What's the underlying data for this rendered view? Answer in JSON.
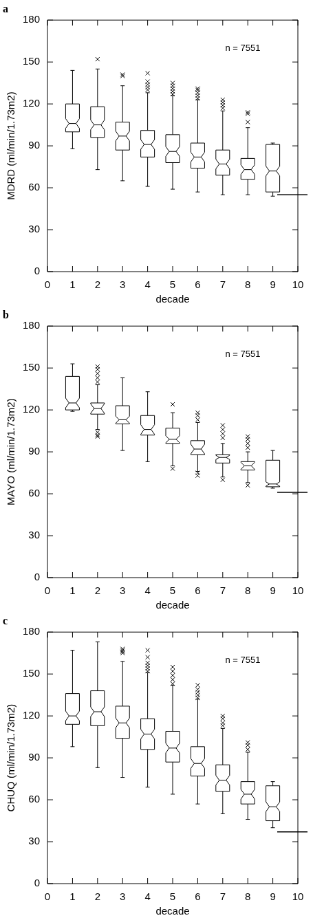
{
  "chart_data": [
    {
      "type": "box",
      "title": "a",
      "xlabel": "decade",
      "ylabel": "MDRD (ml/min/1.73m2)",
      "annotations": [
        "n = 7551"
      ],
      "x": [
        1,
        2,
        3,
        4,
        5,
        6,
        7,
        8,
        9
      ],
      "xlim": [
        0,
        10
      ],
      "xticks": [
        0,
        1,
        2,
        3,
        4,
        5,
        6,
        7,
        8,
        9,
        10
      ],
      "ylim": [
        0,
        180
      ],
      "yticks": [
        0,
        30,
        60,
        90,
        120,
        150,
        180
      ],
      "grid": false,
      "marker": "cross",
      "boxes": [
        {
          "low": 88,
          "q1": 100,
          "median": 106,
          "q3": 120,
          "high": 144
        },
        {
          "low": 73,
          "q1": 96,
          "median": 105,
          "q3": 118,
          "high": 145,
          "outliers": [
            152
          ]
        },
        {
          "low": 65,
          "q1": 87,
          "median": 97,
          "q3": 107,
          "high": 133,
          "outliers": [
            140,
            141
          ]
        },
        {
          "low": 61,
          "q1": 82,
          "median": 91,
          "q3": 101,
          "high": 128,
          "outliers": [
            130,
            132,
            134,
            136,
            142
          ]
        },
        {
          "low": 59,
          "q1": 78,
          "median": 86,
          "q3": 98,
          "high": 126,
          "outliers": [
            127,
            129,
            131,
            133,
            135
          ]
        },
        {
          "low": 57,
          "q1": 74,
          "median": 82,
          "q3": 92,
          "high": 123,
          "outliers": [
            124,
            126,
            128,
            130,
            131
          ]
        },
        {
          "low": 55,
          "q1": 69,
          "median": 77,
          "q3": 87,
          "high": 115,
          "outliers": [
            117,
            119,
            121,
            123
          ]
        },
        {
          "low": 55,
          "q1": 66,
          "median": 73,
          "q3": 81,
          "high": 103,
          "outliers": [
            107,
            113,
            114
          ]
        },
        {
          "low": 54,
          "q1": 57,
          "median": 72,
          "q3": 91,
          "high": 92
        }
      ],
      "ref_lines": [
        {
          "axis": "y",
          "value": 55
        }
      ]
    },
    {
      "type": "box",
      "title": "b",
      "xlabel": "decade",
      "ylabel": "MAYO (ml/min/1.73m2)",
      "annotations": [
        "n = 7551"
      ],
      "x": [
        1,
        2,
        3,
        4,
        5,
        6,
        7,
        8,
        9
      ],
      "xlim": [
        0,
        10
      ],
      "xticks": [
        0,
        1,
        2,
        3,
        4,
        5,
        6,
        7,
        8,
        9,
        10
      ],
      "ylim": [
        0,
        180
      ],
      "yticks": [
        0,
        30,
        60,
        90,
        120,
        150,
        180
      ],
      "grid": false,
      "marker": "cross",
      "boxes": [
        {
          "low": 119,
          "q1": 120,
          "median": 125,
          "q3": 144,
          "high": 153
        },
        {
          "low": 106,
          "q1": 117,
          "median": 121,
          "q3": 125,
          "high": 138,
          "outliers": [
            140,
            143,
            146,
            149,
            151,
            104,
            102,
            101
          ]
        },
        {
          "low": 91,
          "q1": 110,
          "median": 113,
          "q3": 123,
          "high": 143
        },
        {
          "low": 83,
          "q1": 102,
          "median": 106,
          "q3": 116,
          "high": 133
        },
        {
          "low": 80,
          "q1": 96,
          "median": 99,
          "q3": 107,
          "high": 118,
          "outliers": [
            124,
            78
          ]
        },
        {
          "low": 76,
          "q1": 88,
          "median": 92,
          "q3": 98,
          "high": 111,
          "outliers": [
            113,
            116,
            118,
            73,
            75
          ]
        },
        {
          "low": 72,
          "q1": 82,
          "median": 86,
          "q3": 88,
          "high": 96,
          "outliers": [
            100,
            103,
            106,
            109,
            70
          ]
        },
        {
          "low": 68,
          "q1": 77,
          "median": 80,
          "q3": 83,
          "high": 90,
          "outliers": [
            93,
            96,
            99,
            101,
            66
          ]
        },
        {
          "low": 64,
          "q1": 65,
          "median": 67,
          "q3": 84,
          "high": 91
        }
      ],
      "ref_lines": [
        {
          "axis": "y",
          "value": 61
        }
      ]
    },
    {
      "type": "box",
      "title": "c",
      "xlabel": "decade",
      "ylabel": "CHUQ (ml/min/1.73m2)",
      "annotations": [
        "n = 7551"
      ],
      "x": [
        1,
        2,
        3,
        4,
        5,
        6,
        7,
        8,
        9
      ],
      "xlim": [
        0,
        10
      ],
      "xticks": [
        0,
        1,
        2,
        3,
        4,
        5,
        6,
        7,
        8,
        9,
        10
      ],
      "ylim": [
        0,
        180
      ],
      "yticks": [
        0,
        30,
        60,
        90,
        120,
        150,
        180
      ],
      "grid": false,
      "marker": "cross",
      "boxes": [
        {
          "low": 98,
          "q1": 114,
          "median": 120,
          "q3": 136,
          "high": 167
        },
        {
          "low": 83,
          "q1": 113,
          "median": 123,
          "q3": 138,
          "high": 173
        },
        {
          "low": 76,
          "q1": 104,
          "median": 115,
          "q3": 127,
          "high": 159,
          "outliers": [
            165,
            166,
            167,
            168
          ]
        },
        {
          "low": 69,
          "q1": 96,
          "median": 107,
          "q3": 118,
          "high": 151,
          "outliers": [
            152,
            154,
            156,
            158,
            162,
            167
          ]
        },
        {
          "low": 64,
          "q1": 87,
          "median": 97,
          "q3": 109,
          "high": 142,
          "outliers": [
            143,
            146,
            149,
            152,
            155
          ]
        },
        {
          "low": 57,
          "q1": 77,
          "median": 86,
          "q3": 98,
          "high": 132,
          "outliers": [
            133,
            135,
            137,
            139,
            142
          ]
        },
        {
          "low": 50,
          "q1": 66,
          "median": 74,
          "q3": 85,
          "high": 111,
          "outliers": [
            113,
            115,
            118,
            120
          ]
        },
        {
          "low": 46,
          "q1": 57,
          "median": 64,
          "q3": 73,
          "high": 94,
          "outliers": [
            96,
            99,
            101
          ]
        },
        {
          "low": 40,
          "q1": 45,
          "median": 55,
          "q3": 70,
          "high": 73
        }
      ],
      "ref_lines": [
        {
          "axis": "y",
          "value": 37
        }
      ]
    }
  ]
}
